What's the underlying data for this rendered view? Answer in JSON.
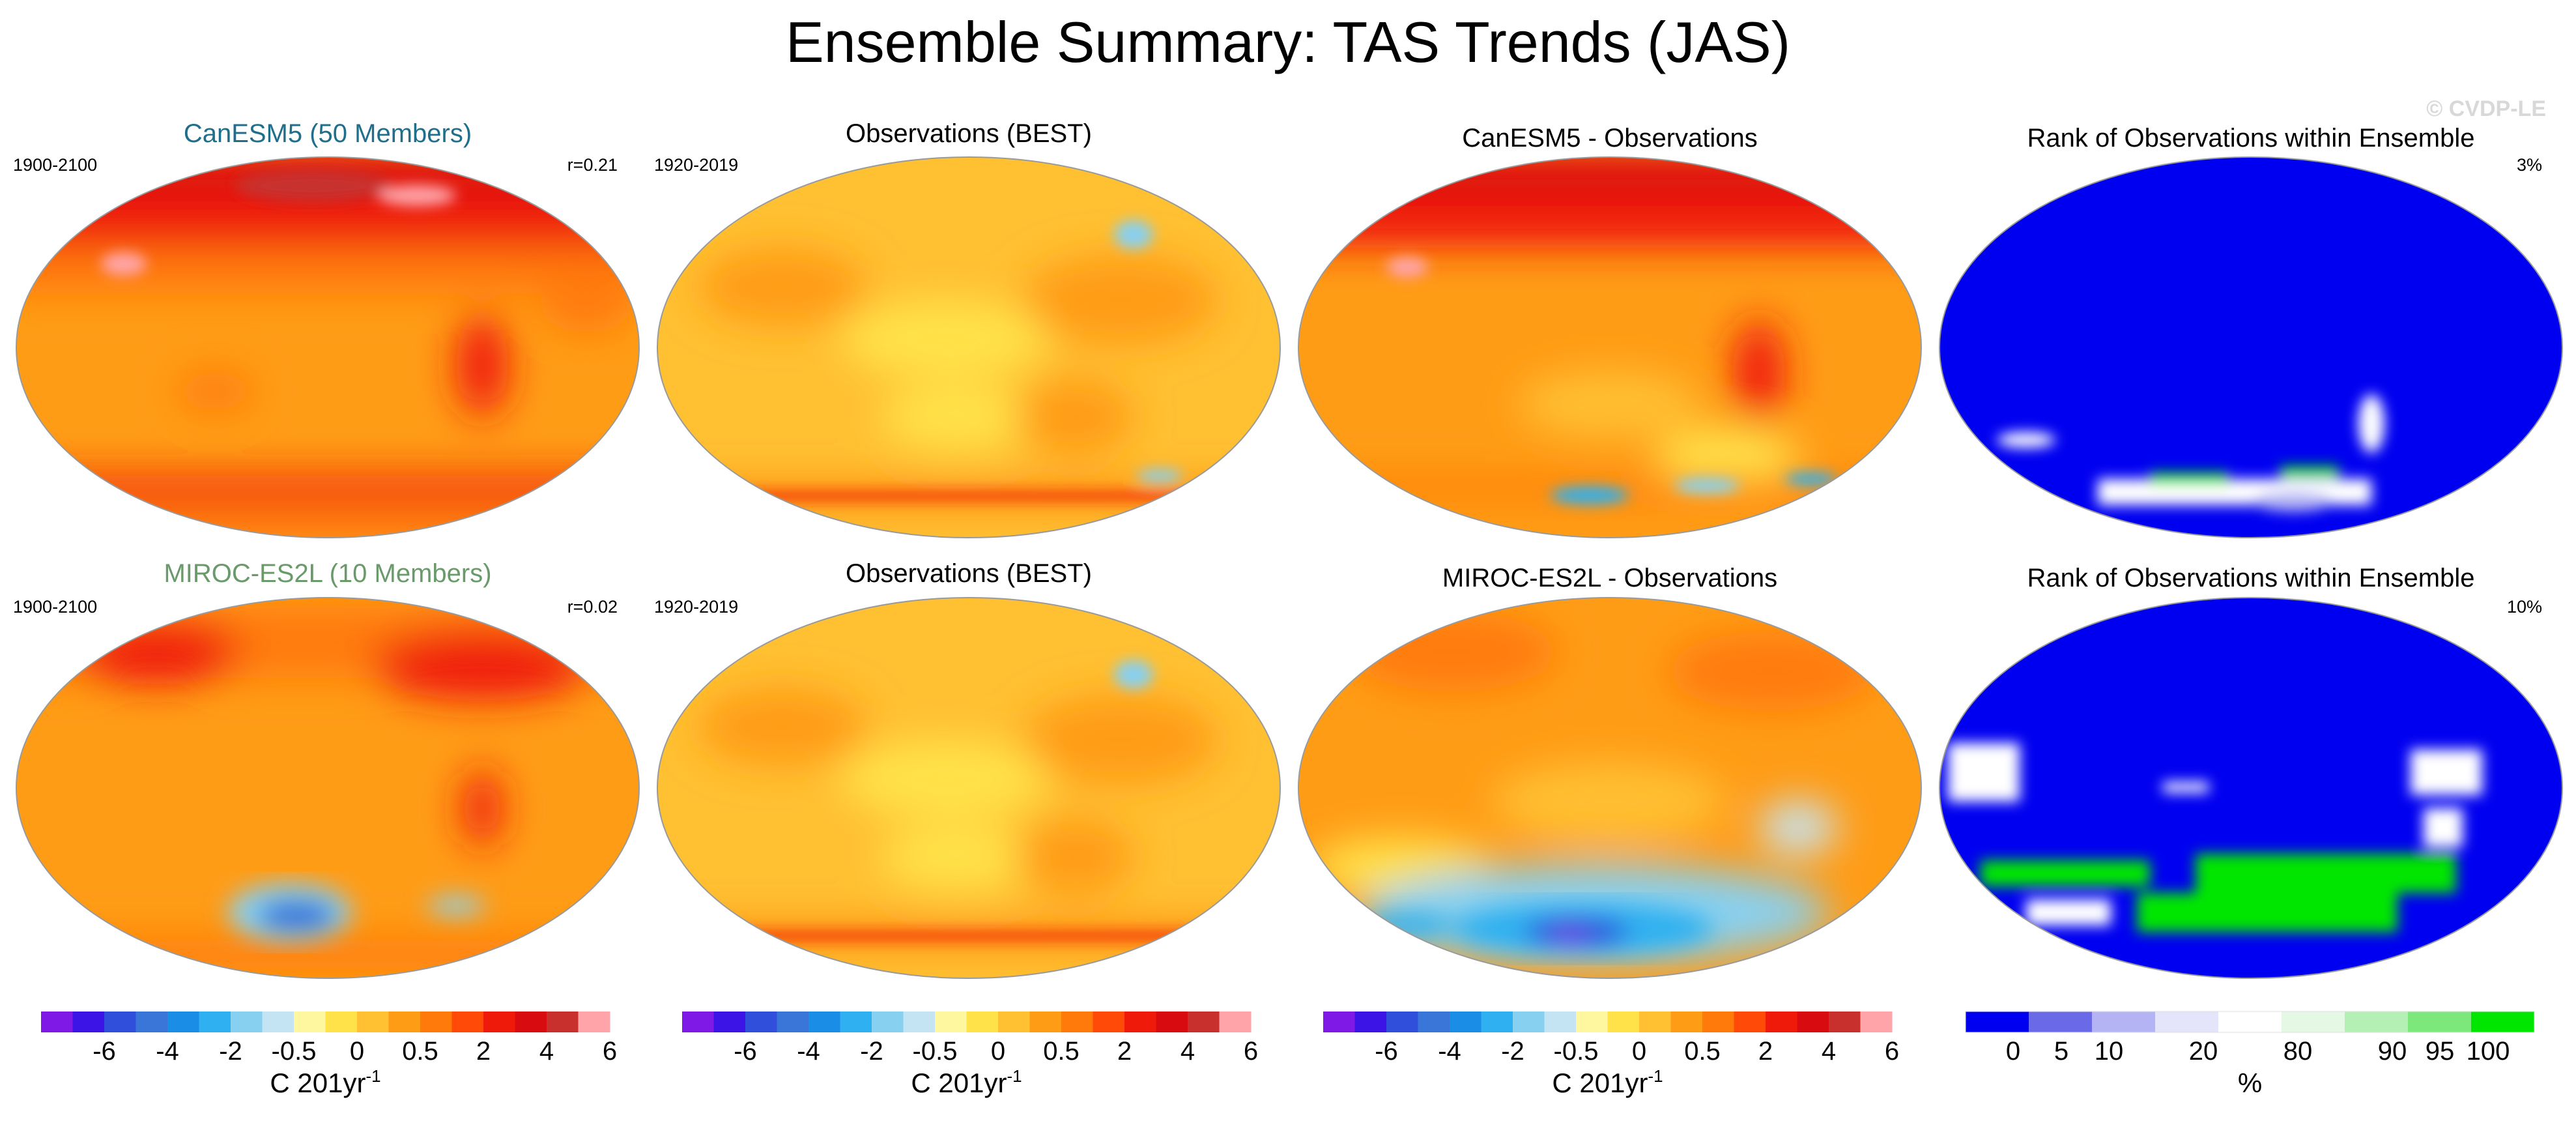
{
  "figure": {
    "title": "Ensemble Summary: TAS Trends (JAS)",
    "watermark": "© CVDP-LE"
  },
  "colors": {
    "trend": [
      "#7f1ae6",
      "#3c14e6",
      "#3050dc",
      "#3a76d8",
      "#1a8ee6",
      "#2fb0f0",
      "#88d0f0",
      "#c4e4f4",
      "#fff7a0",
      "#ffe24a",
      "#ffc032",
      "#ff9c16",
      "#ff7a0a",
      "#ff4a08",
      "#f01a0a",
      "#d80c10",
      "#c8302e",
      "#ffa4a8"
    ],
    "rank": [
      "#0000f0",
      "#6a6ae8",
      "#b4b4f4",
      "#e4e4fa",
      "#ffffff",
      "#e4f8e4",
      "#b4f0b4",
      "#7ce87c",
      "#00e600"
    ],
    "model_title_canesm5": "#1f6e8c",
    "model_title_miroc": "#6a9a6a"
  },
  "rows": [
    {
      "model_title": "CanESM5 (50 Members)",
      "model_period": "1900-2100",
      "pattern_corr": "r=0.21",
      "obs_title": "Observations (BEST)",
      "obs_period": "1920-2019",
      "diff_title": "CanESM5 - Observations",
      "rank_title": "Rank of Observations within Ensemble",
      "rank_pct": "3%"
    },
    {
      "model_title": "MIROC-ES2L (10 Members)",
      "model_period": "1900-2100",
      "pattern_corr": "r=0.02",
      "obs_title": "Observations (BEST)",
      "obs_period": "1920-2019",
      "diff_title": "MIROC-ES2L - Observations",
      "rank_title": "Rank of Observations within Ensemble",
      "rank_pct": "10%"
    }
  ],
  "colorbars": {
    "trend": {
      "ticks": [
        "-6",
        "-4",
        "-2",
        "-0.5",
        "0",
        "0.5",
        "2",
        "4",
        "6"
      ],
      "unit": "C 201yr",
      "unit_exp": "-1"
    },
    "rank": {
      "ticks": [
        "0",
        "5",
        "10",
        "20",
        "80",
        "90",
        "95",
        "100"
      ],
      "unit": "%"
    }
  },
  "chart_data": [
    {
      "type": "heatmap",
      "title": "CanESM5 (50 Members)",
      "subtitle": "1900-2100",
      "annotation": "r=0.21",
      "projection": "Robinson",
      "colorbar": "trend"
    },
    {
      "type": "heatmap",
      "title": "Observations (BEST)",
      "subtitle": "1920-2019",
      "projection": "Robinson",
      "colorbar": "trend"
    },
    {
      "type": "heatmap",
      "title": "CanESM5 - Observations",
      "projection": "Robinson",
      "colorbar": "trend"
    },
    {
      "type": "heatmap",
      "title": "Rank of Observations within Ensemble",
      "annotation": "3%",
      "projection": "Robinson",
      "colorbar": "rank"
    },
    {
      "type": "heatmap",
      "title": "MIROC-ES2L (10 Members)",
      "subtitle": "1900-2100",
      "annotation": "r=0.02",
      "projection": "Robinson",
      "colorbar": "trend"
    },
    {
      "type": "heatmap",
      "title": "Observations (BEST)",
      "subtitle": "1920-2019",
      "projection": "Robinson",
      "colorbar": "trend"
    },
    {
      "type": "heatmap",
      "title": "MIROC-ES2L - Observations",
      "projection": "Robinson",
      "colorbar": "trend"
    },
    {
      "type": "heatmap",
      "title": "Rank of Observations within Ensemble",
      "annotation": "10%",
      "projection": "Robinson",
      "colorbar": "rank"
    }
  ]
}
